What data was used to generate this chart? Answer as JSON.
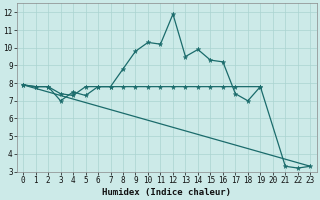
{
  "xlabel": "Humidex (Indice chaleur)",
  "bg_color": "#cceae8",
  "grid_color": "#aad4d0",
  "line_color": "#1a6b6b",
  "xlim": [
    -0.5,
    23.5
  ],
  "ylim": [
    3,
    12.5
  ],
  "xticks": [
    0,
    1,
    2,
    3,
    4,
    5,
    6,
    7,
    8,
    9,
    10,
    11,
    12,
    13,
    14,
    15,
    16,
    17,
    18,
    19,
    20,
    21,
    22,
    23
  ],
  "yticks": [
    3,
    4,
    5,
    6,
    7,
    8,
    9,
    10,
    11,
    12
  ],
  "line1_x": [
    0,
    1,
    2,
    3,
    4,
    5,
    6,
    7,
    8,
    9,
    10,
    11,
    12,
    13,
    14,
    15,
    16,
    17,
    18,
    19,
    21,
    22,
    23
  ],
  "line1_y": [
    7.9,
    7.8,
    7.8,
    7.0,
    7.5,
    7.3,
    7.8,
    7.8,
    8.8,
    9.8,
    10.3,
    10.2,
    11.9,
    9.5,
    9.9,
    9.3,
    9.2,
    7.4,
    7.0,
    7.8,
    3.3,
    3.2,
    3.3
  ],
  "line2_x": [
    0,
    1,
    2,
    3,
    4,
    5,
    6,
    7,
    8,
    9,
    10,
    11,
    12,
    13,
    14,
    15,
    16,
    17,
    19
  ],
  "line2_y": [
    7.9,
    7.8,
    7.8,
    7.4,
    7.3,
    7.8,
    7.8,
    7.8,
    7.8,
    7.8,
    7.8,
    7.8,
    7.8,
    7.8,
    7.8,
    7.8,
    7.8,
    7.8,
    7.8
  ],
  "line3_x": [
    0,
    23
  ],
  "line3_y": [
    7.9,
    3.3
  ]
}
